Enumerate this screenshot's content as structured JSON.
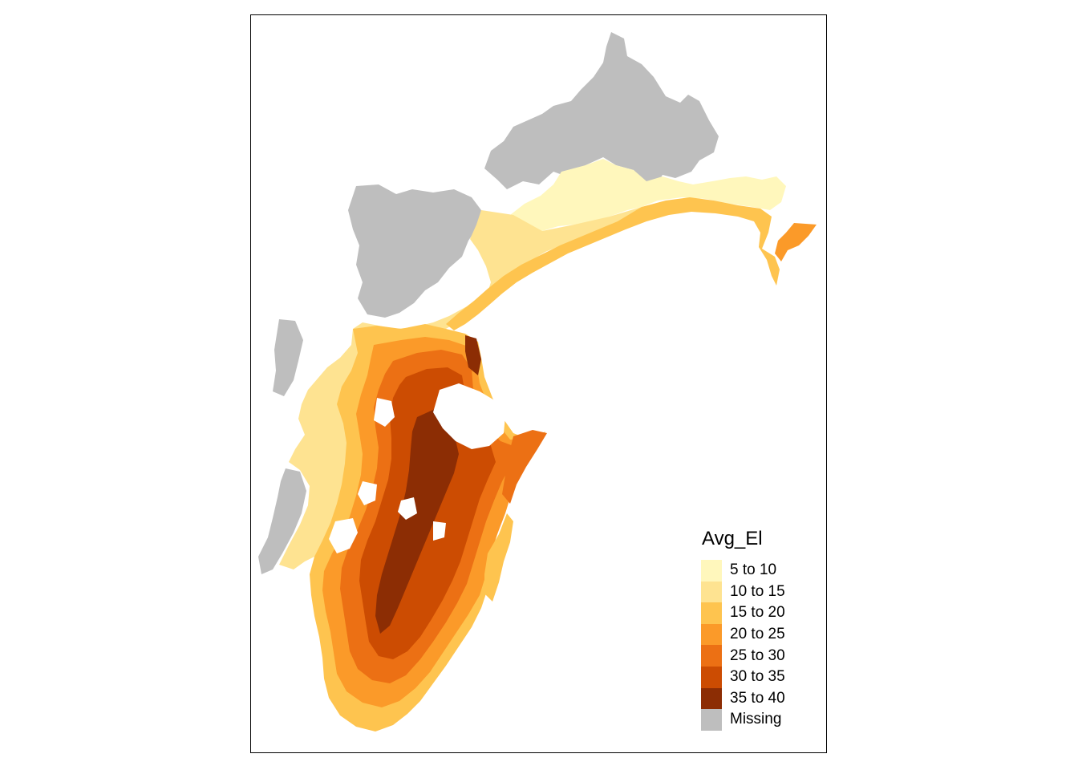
{
  "map": {
    "legend": {
      "title": "Avg_El",
      "classes": [
        {
          "label": "5 to 10",
          "color": "#FFF7BC"
        },
        {
          "label": "10 to 15",
          "color": "#FEE391"
        },
        {
          "label": "15 to 20",
          "color": "#FEC44F"
        },
        {
          "label": "20 to 25",
          "color": "#FB9A29"
        },
        {
          "label": "25 to 30",
          "color": "#EC7014"
        },
        {
          "label": "30 to 35",
          "color": "#CC4C02"
        },
        {
          "label": "35 to 40",
          "color": "#8C2D04"
        },
        {
          "label": "Missing",
          "color": "#BEBEBE"
        }
      ]
    }
  }
}
